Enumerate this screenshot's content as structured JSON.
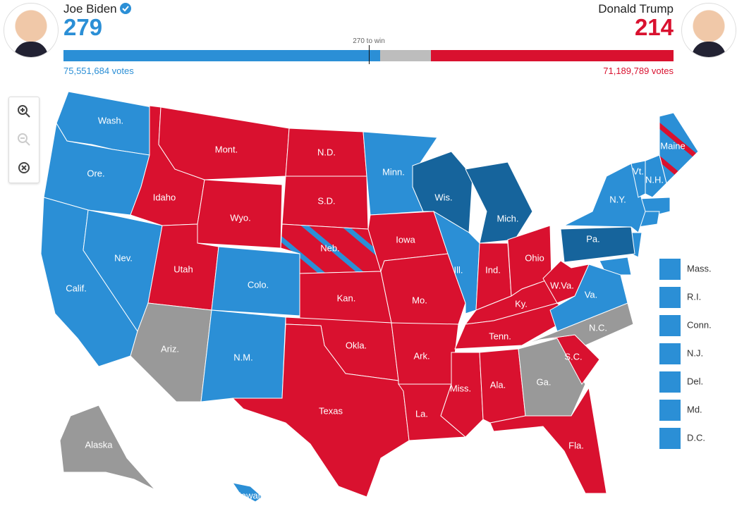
{
  "header": {
    "left": {
      "name": "Joe Biden",
      "electoral": 279,
      "votes": "75,551,684 votes",
      "color": "#2b8fd6"
    },
    "right": {
      "name": "Donald Trump",
      "electoral": 214,
      "votes": "71,189,789 votes",
      "color": "#d9112f"
    },
    "threshold": "270 to win",
    "undecided_color": "#bdbdbd"
  },
  "map": {
    "states": [
      {
        "label": "Wash.",
        "color": "#2b8fd6"
      },
      {
        "label": "Ore.",
        "color": "#2b8fd6"
      },
      {
        "label": "Calif.",
        "color": "#2b8fd6"
      },
      {
        "label": "Nev.",
        "color": "#2b8fd6"
      },
      {
        "label": "Idaho",
        "color": "#d9112f"
      },
      {
        "label": "Mont.",
        "color": "#d9112f"
      },
      {
        "label": "Wyo.",
        "color": "#d9112f"
      },
      {
        "label": "Utah",
        "color": "#d9112f"
      },
      {
        "label": "Ariz.",
        "color": "#999999"
      },
      {
        "label": "Colo.",
        "color": "#2b8fd6"
      },
      {
        "label": "N.M.",
        "color": "#2b8fd6"
      },
      {
        "label": "N.D.",
        "color": "#d9112f"
      },
      {
        "label": "S.D.",
        "color": "#d9112f"
      },
      {
        "label": "Neb.",
        "color": "#d9112f",
        "stripe": "#2b8fd6"
      },
      {
        "label": "Kan.",
        "color": "#d9112f"
      },
      {
        "label": "Okla.",
        "color": "#d9112f"
      },
      {
        "label": "Texas",
        "color": "#d9112f"
      },
      {
        "label": "Minn.",
        "color": "#2b8fd6"
      },
      {
        "label": "Iowa",
        "color": "#d9112f"
      },
      {
        "label": "Mo.",
        "color": "#d9112f"
      },
      {
        "label": "Ark.",
        "color": "#d9112f"
      },
      {
        "label": "La.",
        "color": "#d9112f"
      },
      {
        "label": "Wis.",
        "color": "#16649c"
      },
      {
        "label": "Mich.",
        "color": "#16649c"
      },
      {
        "label": "Ill.",
        "color": "#2b8fd6"
      },
      {
        "label": "Ind.",
        "color": "#d9112f"
      },
      {
        "label": "Ohio",
        "color": "#d9112f"
      },
      {
        "label": "Ky.",
        "color": "#d9112f"
      },
      {
        "label": "Tenn.",
        "color": "#d9112f"
      },
      {
        "label": "Miss.",
        "color": "#d9112f"
      },
      {
        "label": "Ala.",
        "color": "#d9112f"
      },
      {
        "label": "Ga.",
        "color": "#999999"
      },
      {
        "label": "Fla.",
        "color": "#d9112f"
      },
      {
        "label": "S.C.",
        "color": "#d9112f"
      },
      {
        "label": "N.C.",
        "color": "#999999"
      },
      {
        "label": "Va.",
        "color": "#2b8fd6"
      },
      {
        "label": "W.Va.",
        "color": "#d9112f"
      },
      {
        "label": "Pa.",
        "color": "#16649c"
      },
      {
        "label": "N.Y.",
        "color": "#2b8fd6"
      },
      {
        "label": "Maine",
        "color": "#2b8fd6",
        "stripe": "#d9112f"
      },
      {
        "label": "Vt.",
        "color": "#2b8fd6"
      },
      {
        "label": "N.H.",
        "color": "#2b8fd6"
      },
      {
        "label": "Alaska",
        "color": "#999999"
      },
      {
        "label": "Hawaii",
        "color": "#2b8fd6"
      }
    ],
    "small_states": [
      {
        "label": "Mass.",
        "color": "#2b8fd6"
      },
      {
        "label": "R.I.",
        "color": "#2b8fd6"
      },
      {
        "label": "Conn.",
        "color": "#2b8fd6"
      },
      {
        "label": "N.J.",
        "color": "#2b8fd6"
      },
      {
        "label": "Del.",
        "color": "#2b8fd6"
      },
      {
        "label": "Md.",
        "color": "#2b8fd6"
      },
      {
        "label": "D.C.",
        "color": "#2b8fd6"
      }
    ]
  }
}
